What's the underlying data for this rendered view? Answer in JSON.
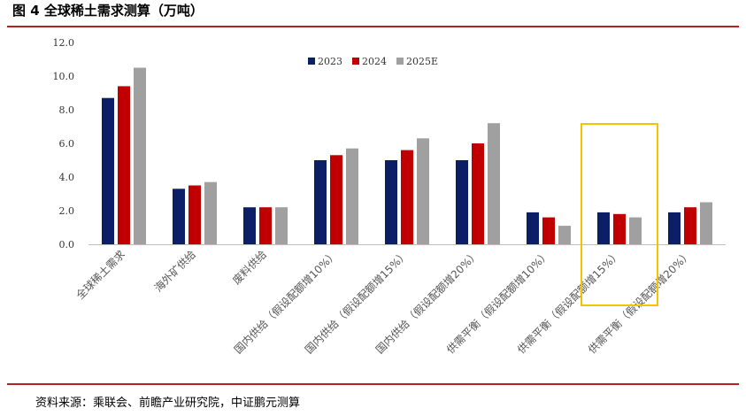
{
  "header": {
    "title": "图 4 全球稀土需求测算（万吨）"
  },
  "footer": {
    "source": "资料来源：乘联会、前瞻产业研究院，中证鹏元测算"
  },
  "chart_data": {
    "type": "bar",
    "categories": [
      "全球稀土需求",
      "海外矿供给",
      "废料供给",
      "国内供给（假设配额增10%）",
      "国内供给（假设配额增15%）",
      "国内供给（假设配额增20%）",
      "供需平衡（假设配额增10%）",
      "供需平衡（假设配额增15%）",
      "供需平衡（假设配额增20%）"
    ],
    "series": [
      {
        "name": "2023",
        "color": "#0b1f66",
        "values": [
          8.7,
          3.3,
          2.2,
          5.0,
          5.0,
          5.0,
          1.9,
          1.9,
          1.9
        ]
      },
      {
        "name": "2024",
        "color": "#c00000",
        "values": [
          9.4,
          3.5,
          2.2,
          5.3,
          5.6,
          6.0,
          1.6,
          1.8,
          2.2
        ]
      },
      {
        "name": "2025E",
        "color": "#a0a0a0",
        "values": [
          10.5,
          3.7,
          2.2,
          5.7,
          6.3,
          7.2,
          1.1,
          1.6,
          2.5
        ]
      }
    ],
    "ylim": [
      0,
      12
    ],
    "yticks": [
      "0.0",
      "2.0",
      "4.0",
      "6.0",
      "8.0",
      "10.0",
      "12.0"
    ],
    "legend_position": "top-center",
    "grid": false,
    "highlight_category": "供需平衡（假设配额增15%）",
    "highlight_color": "#f5c400"
  }
}
